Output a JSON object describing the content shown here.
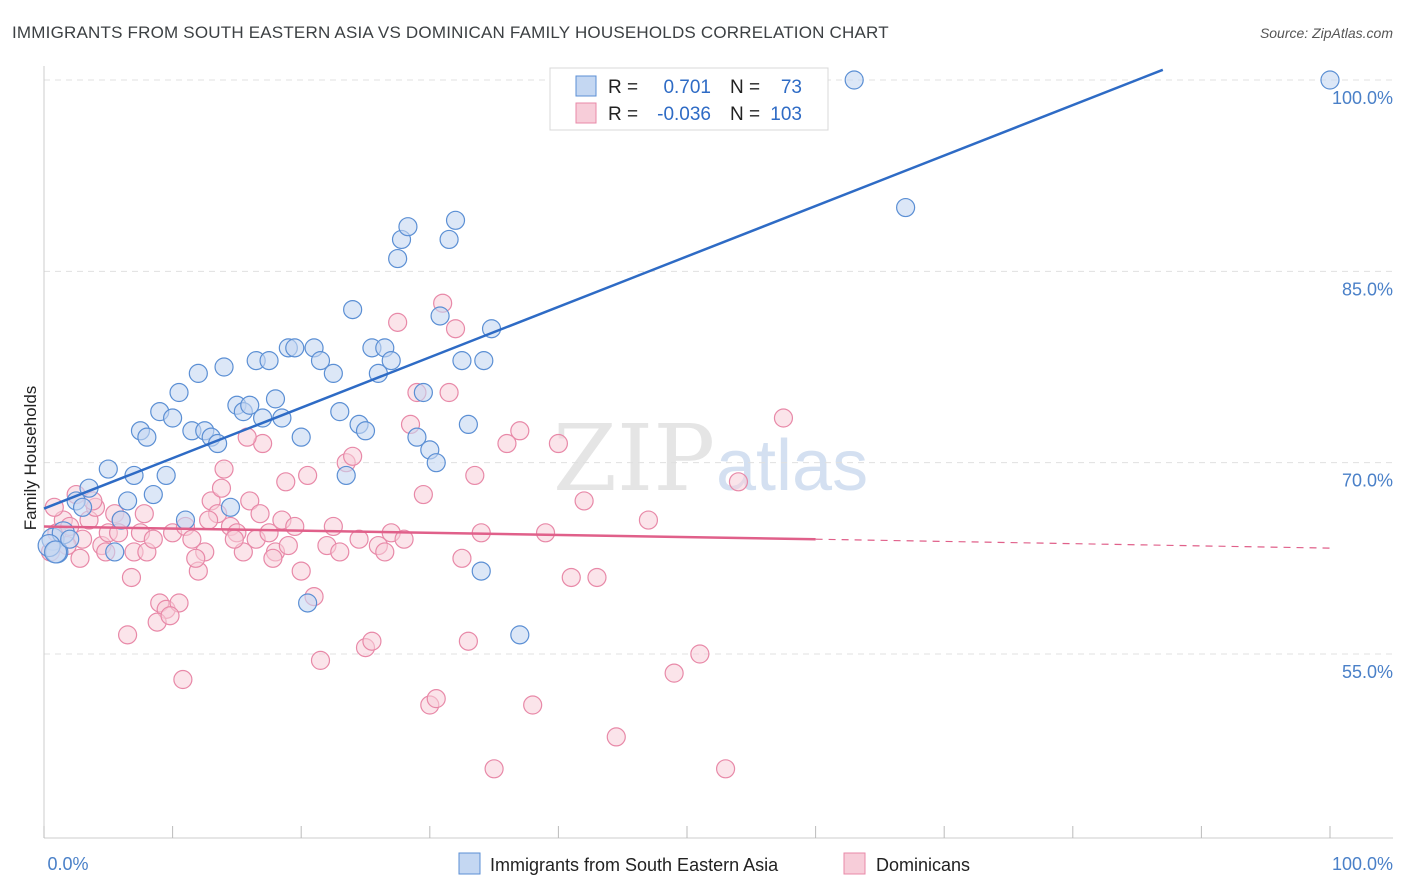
{
  "title": "IMMIGRANTS FROM SOUTH EASTERN ASIA VS DOMINICAN FAMILY HOUSEHOLDS CORRELATION CHART",
  "source": "Source: ZipAtlas.com",
  "watermark": {
    "zip": "ZIP",
    "atlas": "atlas"
  },
  "colors": {
    "blue": "#5b8fd4",
    "blue_fill": "#c4d7f2",
    "blue_line": "#2e6bc5",
    "pink": "#e889a8",
    "pink_fill": "#f7cdd9",
    "pink_line": "#e0608a",
    "grid": "#e0e0e0",
    "tick_label": "#4a80c8"
  },
  "legend": {
    "rows": [
      {
        "r_label": "R =",
        "r_value": "0.701",
        "n_label": "N =",
        "n_value": "73"
      },
      {
        "r_label": "R =",
        "r_value": "-0.036",
        "n_label": "N =",
        "n_value": "103"
      }
    ]
  },
  "chart_data": {
    "type": "scatter",
    "title": "IMMIGRANTS FROM SOUTH EASTERN ASIA VS DOMINICAN FAMILY HOUSEHOLDS CORRELATION CHART",
    "xlabel": "",
    "ylabel": "Family Households",
    "xlim": [
      0,
      100
    ],
    "ylim": [
      40,
      102
    ],
    "x_tick_labels": [
      "0.0%",
      "100.0%"
    ],
    "y_ticks": [
      55,
      70,
      85,
      100
    ],
    "y_tick_labels": [
      "55.0%",
      "70.0%",
      "85.0%",
      "100.0%"
    ],
    "grid": true,
    "legend_position": "top-center",
    "series": [
      {
        "name": "Immigrants from South Eastern Asia",
        "color": "#5b8fd4",
        "trend": {
          "x": [
            0,
            87
          ],
          "y": [
            66.4,
            100.8
          ],
          "dashed_extension": false
        },
        "points": [
          [
            0.7,
            64.0
          ],
          [
            1.0,
            63.0
          ],
          [
            1.5,
            64.5
          ],
          [
            2.5,
            67.0
          ],
          [
            3.0,
            66.5
          ],
          [
            3.5,
            68.0
          ],
          [
            5.0,
            69.5
          ],
          [
            5.5,
            63.0
          ],
          [
            6.0,
            65.5
          ],
          [
            6.5,
            67.0
          ],
          [
            7.0,
            69.0
          ],
          [
            7.5,
            72.5
          ],
          [
            8.0,
            72.0
          ],
          [
            8.5,
            67.5
          ],
          [
            9.0,
            74.0
          ],
          [
            9.5,
            69.0
          ],
          [
            10.0,
            73.5
          ],
          [
            10.5,
            75.5
          ],
          [
            11.0,
            65.5
          ],
          [
            11.5,
            72.5
          ],
          [
            12.0,
            77.0
          ],
          [
            12.5,
            72.5
          ],
          [
            13.0,
            72.0
          ],
          [
            13.5,
            71.5
          ],
          [
            14.0,
            77.5
          ],
          [
            14.5,
            66.5
          ],
          [
            15.0,
            74.5
          ],
          [
            15.5,
            74.0
          ],
          [
            16.0,
            74.5
          ],
          [
            16.5,
            78.0
          ],
          [
            17.0,
            73.5
          ],
          [
            17.5,
            78.0
          ],
          [
            18.0,
            75.0
          ],
          [
            18.5,
            73.5
          ],
          [
            19.0,
            79.0
          ],
          [
            19.5,
            79.0
          ],
          [
            20.0,
            72.0
          ],
          [
            20.5,
            59.0
          ],
          [
            21.0,
            79.0
          ],
          [
            21.5,
            78.0
          ],
          [
            22.5,
            77.0
          ],
          [
            23.0,
            74.0
          ],
          [
            23.5,
            69.0
          ],
          [
            24.0,
            82.0
          ],
          [
            24.5,
            73.0
          ],
          [
            25.0,
            72.5
          ],
          [
            25.5,
            79.0
          ],
          [
            26.0,
            77.0
          ],
          [
            26.5,
            79.0
          ],
          [
            27.0,
            78.0
          ],
          [
            27.5,
            86.0
          ],
          [
            27.8,
            87.5
          ],
          [
            28.3,
            88.5
          ],
          [
            29.0,
            72.0
          ],
          [
            29.5,
            75.5
          ],
          [
            30.0,
            71.0
          ],
          [
            30.5,
            70.0
          ],
          [
            30.8,
            81.5
          ],
          [
            31.5,
            87.5
          ],
          [
            32.0,
            89.0
          ],
          [
            32.5,
            78.0
          ],
          [
            33.0,
            73.0
          ],
          [
            34.0,
            61.5
          ],
          [
            34.2,
            78.0
          ],
          [
            34.8,
            80.5
          ],
          [
            37.0,
            56.5
          ],
          [
            43.0,
            100.0
          ],
          [
            63.0,
            100.0
          ],
          [
            67.0,
            90.0
          ],
          [
            100.0,
            100.0
          ],
          [
            0.4,
            63.5
          ],
          [
            0.9,
            63.0
          ],
          [
            2.0,
            64.0
          ]
        ]
      },
      {
        "name": "Dominicans",
        "color": "#e889a8",
        "trend": {
          "x": [
            0,
            60,
            100
          ],
          "y": [
            65.0,
            64.0,
            63.3
          ],
          "solid_until": 60
        },
        "points": [
          [
            0.5,
            63.0
          ],
          [
            1.0,
            64.5
          ],
          [
            1.5,
            65.5
          ],
          [
            2.0,
            65.0
          ],
          [
            2.5,
            67.5
          ],
          [
            3.0,
            64.0
          ],
          [
            3.5,
            65.5
          ],
          [
            4.0,
            66.5
          ],
          [
            4.5,
            63.5
          ],
          [
            5.0,
            64.5
          ],
          [
            5.5,
            66.0
          ],
          [
            6.0,
            65.5
          ],
          [
            6.5,
            56.5
          ],
          [
            7.0,
            63.0
          ],
          [
            7.5,
            64.5
          ],
          [
            8.0,
            63.0
          ],
          [
            8.5,
            64.0
          ],
          [
            9.0,
            59.0
          ],
          [
            9.5,
            58.5
          ],
          [
            10.0,
            64.5
          ],
          [
            10.5,
            59.0
          ],
          [
            11.0,
            65.0
          ],
          [
            11.5,
            64.0
          ],
          [
            12.0,
            61.5
          ],
          [
            12.5,
            63.0
          ],
          [
            13.0,
            67.0
          ],
          [
            13.5,
            66.0
          ],
          [
            14.0,
            69.5
          ],
          [
            14.5,
            65.0
          ],
          [
            15.0,
            64.5
          ],
          [
            15.5,
            63.0
          ],
          [
            16.0,
            67.0
          ],
          [
            16.5,
            64.0
          ],
          [
            17.0,
            71.5
          ],
          [
            17.5,
            64.5
          ],
          [
            18.0,
            63.0
          ],
          [
            18.5,
            65.5
          ],
          [
            19.0,
            63.5
          ],
          [
            19.5,
            65.0
          ],
          [
            20.0,
            61.5
          ],
          [
            20.5,
            69.0
          ],
          [
            21.0,
            59.5
          ],
          [
            21.5,
            54.5
          ],
          [
            22.0,
            63.5
          ],
          [
            22.5,
            65.0
          ],
          [
            23.0,
            63.0
          ],
          [
            23.5,
            70.0
          ],
          [
            24.0,
            70.5
          ],
          [
            24.5,
            64.0
          ],
          [
            25.0,
            55.5
          ],
          [
            25.5,
            56.0
          ],
          [
            26.0,
            63.5
          ],
          [
            26.5,
            63.0
          ],
          [
            27.0,
            64.5
          ],
          [
            27.5,
            81.0
          ],
          [
            28.0,
            64.0
          ],
          [
            28.5,
            73.0
          ],
          [
            29.0,
            75.5
          ],
          [
            29.5,
            67.5
          ],
          [
            30.0,
            51.0
          ],
          [
            30.5,
            51.5
          ],
          [
            31.0,
            82.5
          ],
          [
            31.5,
            75.5
          ],
          [
            32.0,
            80.5
          ],
          [
            32.5,
            62.5
          ],
          [
            33.0,
            56.0
          ],
          [
            33.5,
            69.0
          ],
          [
            34.0,
            64.5
          ],
          [
            35.0,
            46.0
          ],
          [
            36.0,
            71.5
          ],
          [
            37.0,
            72.5
          ],
          [
            38.0,
            51.0
          ],
          [
            39.0,
            64.5
          ],
          [
            40.0,
            71.5
          ],
          [
            41.0,
            61.0
          ],
          [
            42.0,
            67.0
          ],
          [
            43.0,
            61.0
          ],
          [
            44.5,
            48.5
          ],
          [
            47.0,
            65.5
          ],
          [
            49.0,
            53.5
          ],
          [
            51.0,
            55.0
          ],
          [
            53.0,
            46.0
          ],
          [
            54.0,
            68.5
          ],
          [
            57.5,
            73.5
          ],
          [
            0.8,
            66.5
          ],
          [
            1.8,
            63.5
          ],
          [
            2.8,
            62.5
          ],
          [
            3.8,
            67.0
          ],
          [
            4.8,
            63.0
          ],
          [
            5.8,
            64.5
          ],
          [
            6.8,
            61.0
          ],
          [
            7.8,
            66.0
          ],
          [
            8.8,
            57.5
          ],
          [
            9.8,
            58.0
          ],
          [
            10.8,
            53.0
          ],
          [
            11.8,
            62.5
          ],
          [
            12.8,
            65.5
          ],
          [
            13.8,
            68.0
          ],
          [
            14.8,
            64.0
          ],
          [
            15.8,
            72.0
          ],
          [
            16.8,
            66.0
          ],
          [
            17.8,
            62.5
          ],
          [
            18.8,
            68.5
          ]
        ]
      }
    ]
  },
  "bottom_legend": [
    {
      "label": "Immigrants from South Eastern Asia"
    },
    {
      "label": "Dominicans"
    }
  ]
}
